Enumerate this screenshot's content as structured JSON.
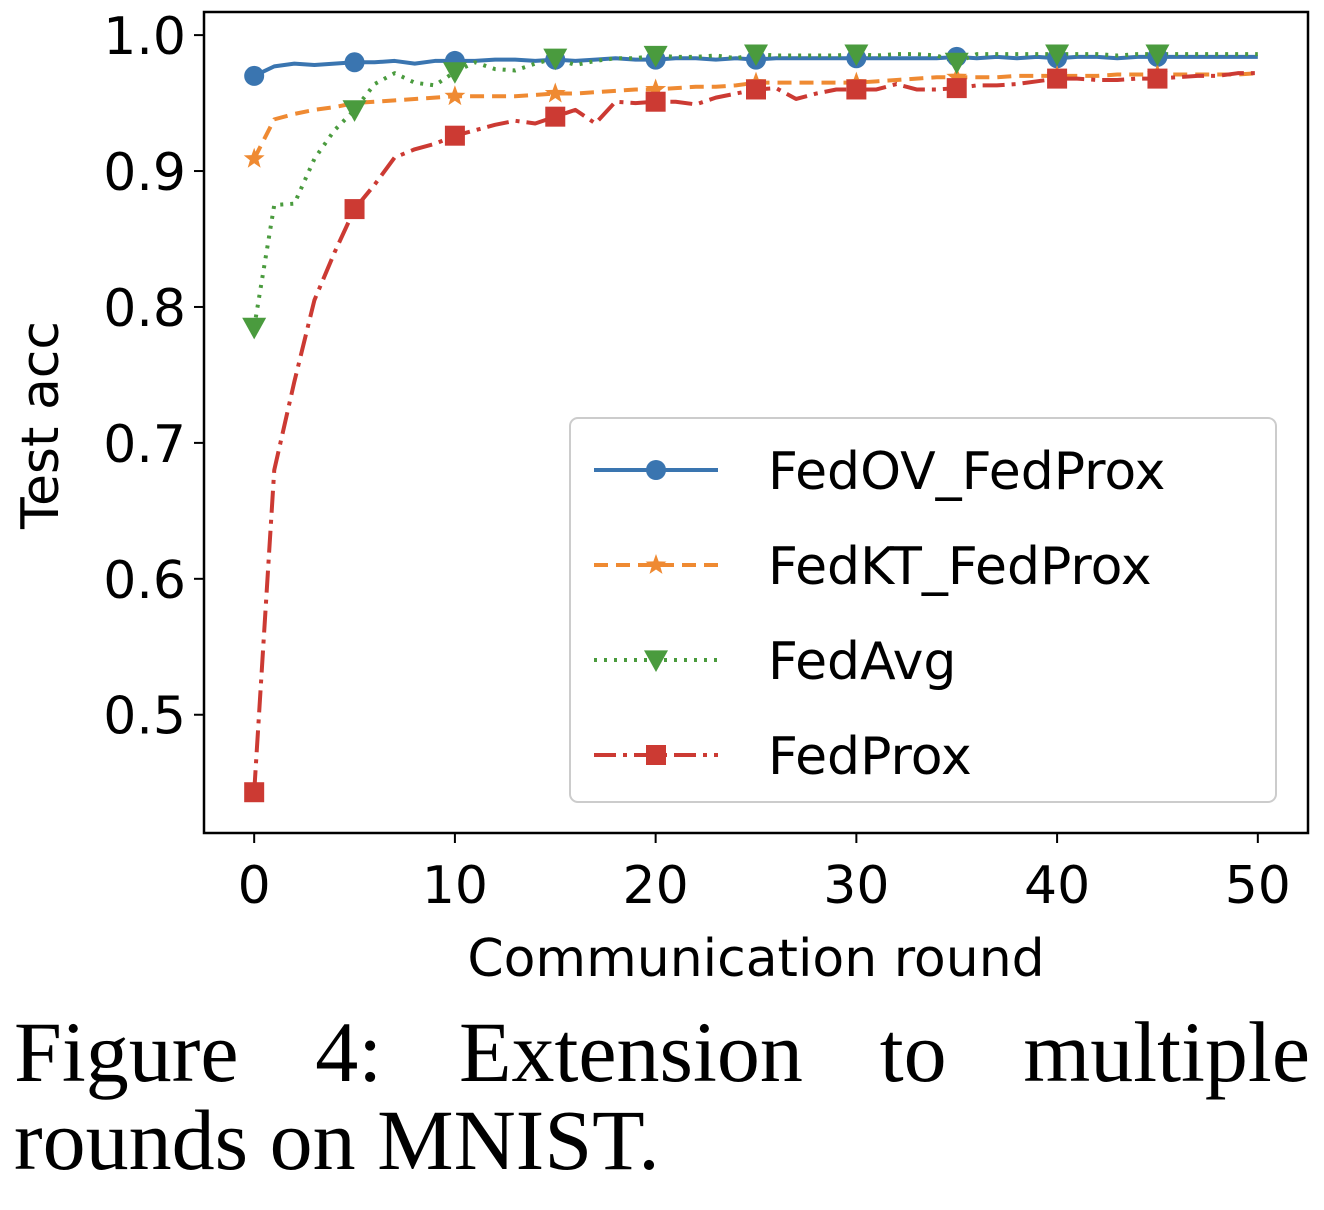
{
  "chart_data": {
    "type": "line",
    "xlabel": "Communication round",
    "ylabel": "Test acc",
    "xlim": [
      -2.5,
      52.5
    ],
    "ylim": [
      0.413,
      1.017
    ],
    "xticks": [
      0,
      10,
      20,
      30,
      40,
      50
    ],
    "yticks": [
      0.5,
      0.6,
      0.7,
      0.8,
      0.9,
      1.0
    ],
    "xtick_labels": [
      "0",
      "10",
      "20",
      "30",
      "40",
      "50"
    ],
    "ytick_labels": [
      "0.5",
      "0.6",
      "0.7",
      "0.8",
      "0.9",
      "1.0"
    ],
    "grid": false,
    "legend_position": "lower-right",
    "x": [
      0,
      1,
      2,
      3,
      4,
      5,
      6,
      7,
      8,
      9,
      10,
      11,
      12,
      13,
      14,
      15,
      16,
      17,
      18,
      19,
      20,
      21,
      22,
      23,
      24,
      25,
      26,
      27,
      28,
      29,
      30,
      31,
      32,
      33,
      34,
      35,
      36,
      37,
      38,
      39,
      40,
      41,
      42,
      43,
      44,
      45,
      46,
      47,
      48,
      49,
      50
    ],
    "series": [
      {
        "name": "FedOV_FedProx",
        "color": "#3a75b0",
        "dash": "",
        "marker": "circle",
        "values": [
          0.97,
          0.977,
          0.979,
          0.978,
          0.979,
          0.98,
          0.98,
          0.981,
          0.979,
          0.981,
          0.981,
          0.981,
          0.982,
          0.982,
          0.981,
          0.982,
          0.981,
          0.982,
          0.983,
          0.982,
          0.982,
          0.983,
          0.983,
          0.982,
          0.983,
          0.982,
          0.983,
          0.983,
          0.983,
          0.983,
          0.983,
          0.983,
          0.983,
          0.983,
          0.983,
          0.984,
          0.983,
          0.984,
          0.983,
          0.984,
          0.983,
          0.984,
          0.984,
          0.983,
          0.984,
          0.984,
          0.984,
          0.984,
          0.984,
          0.984,
          0.984
        ]
      },
      {
        "name": "FedKT_FedProx",
        "color": "#ef8a32",
        "dash": "14 8",
        "marker": "star",
        "values": [
          0.909,
          0.938,
          0.942,
          0.945,
          0.947,
          0.95,
          0.951,
          0.952,
          0.953,
          0.954,
          0.955,
          0.955,
          0.955,
          0.955,
          0.956,
          0.957,
          0.957,
          0.958,
          0.959,
          0.96,
          0.96,
          0.961,
          0.962,
          0.962,
          0.963,
          0.965,
          0.965,
          0.965,
          0.965,
          0.965,
          0.965,
          0.966,
          0.967,
          0.968,
          0.969,
          0.969,
          0.969,
          0.969,
          0.97,
          0.97,
          0.97,
          0.97,
          0.97,
          0.971,
          0.971,
          0.971,
          0.971,
          0.971,
          0.971,
          0.971,
          0.972
        ]
      },
      {
        "name": "FedAvg",
        "color": "#4a9b3e",
        "dash": "3 7",
        "marker": "triangle-down",
        "values": [
          0.785,
          0.875,
          0.876,
          0.909,
          0.93,
          0.945,
          0.964,
          0.972,
          0.965,
          0.963,
          0.973,
          0.98,
          0.975,
          0.974,
          0.979,
          0.983,
          0.978,
          0.981,
          0.983,
          0.983,
          0.985,
          0.984,
          0.984,
          0.985,
          0.983,
          0.986,
          0.985,
          0.985,
          0.985,
          0.985,
          0.986,
          0.985,
          0.986,
          0.986,
          0.985,
          0.98,
          0.986,
          0.986,
          0.986,
          0.986,
          0.986,
          0.986,
          0.986,
          0.985,
          0.986,
          0.986,
          0.986,
          0.986,
          0.986,
          0.986,
          0.986
        ]
      },
      {
        "name": "FedProx",
        "color": "#cc3a33",
        "dash": "22 7 4 7",
        "marker": "square",
        "values": [
          0.443,
          0.68,
          0.745,
          0.805,
          0.84,
          0.872,
          0.89,
          0.91,
          0.916,
          0.92,
          0.926,
          0.93,
          0.934,
          0.937,
          0.935,
          0.94,
          0.945,
          0.935,
          0.951,
          0.95,
          0.951,
          0.951,
          0.949,
          0.954,
          0.957,
          0.96,
          0.961,
          0.953,
          0.957,
          0.96,
          0.96,
          0.96,
          0.964,
          0.96,
          0.96,
          0.961,
          0.963,
          0.963,
          0.964,
          0.966,
          0.968,
          0.968,
          0.967,
          0.967,
          0.968,
          0.968,
          0.969,
          0.97,
          0.97,
          0.972,
          0.972
        ]
      }
    ],
    "marker_x": {
      "FedOV_FedProx": [
        0,
        5,
        10,
        15,
        20,
        25,
        30,
        35,
        40,
        45
      ],
      "FedKT_FedProx": [
        0,
        10,
        15,
        20,
        25,
        30,
        35,
        40,
        45
      ],
      "FedAvg": [
        0,
        5,
        10,
        15,
        20,
        25,
        30,
        35,
        40,
        45
      ],
      "FedProx": [
        0,
        5,
        10,
        15,
        20,
        25,
        30,
        35,
        40,
        45
      ]
    }
  },
  "caption": {
    "text": "Figure 4:  Extension to multiple rounds on MNIST."
  }
}
